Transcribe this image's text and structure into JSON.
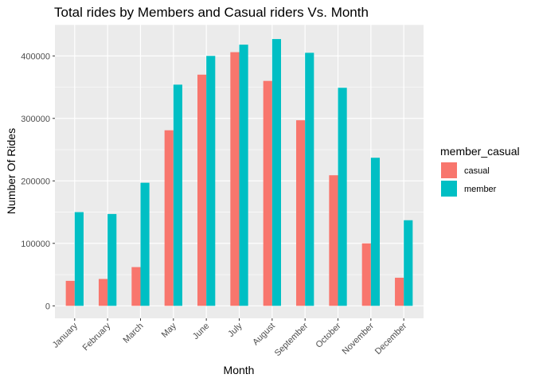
{
  "chart_data": {
    "type": "bar",
    "title": "Total rides by Members and Casual riders Vs. Month",
    "xlabel": "Month",
    "ylabel": "Number Of Rides",
    "categories": [
      "January",
      "February",
      "March",
      "May",
      "June",
      "July",
      "August",
      "September",
      "October",
      "November",
      "December"
    ],
    "series": [
      {
        "name": "casual",
        "color": "#F8766D",
        "values": [
          40000,
          43000,
          62000,
          281000,
          370000,
          406000,
          360000,
          297000,
          209000,
          100000,
          45000
        ]
      },
      {
        "name": "member",
        "color": "#00BFC4",
        "values": [
          150000,
          147000,
          197000,
          354000,
          400000,
          418000,
          427000,
          405000,
          349000,
          237000,
          137000
        ]
      }
    ],
    "ylim": [
      -20000,
      450000
    ],
    "yticks": [
      0,
      100000,
      200000,
      300000,
      400000
    ],
    "ytick_labels": [
      "0",
      "100000",
      "200000",
      "300000",
      "400000"
    ],
    "legend": {
      "title": "member_casual",
      "position": "right"
    },
    "grid": true,
    "panel_background": "#EBEBEB"
  }
}
